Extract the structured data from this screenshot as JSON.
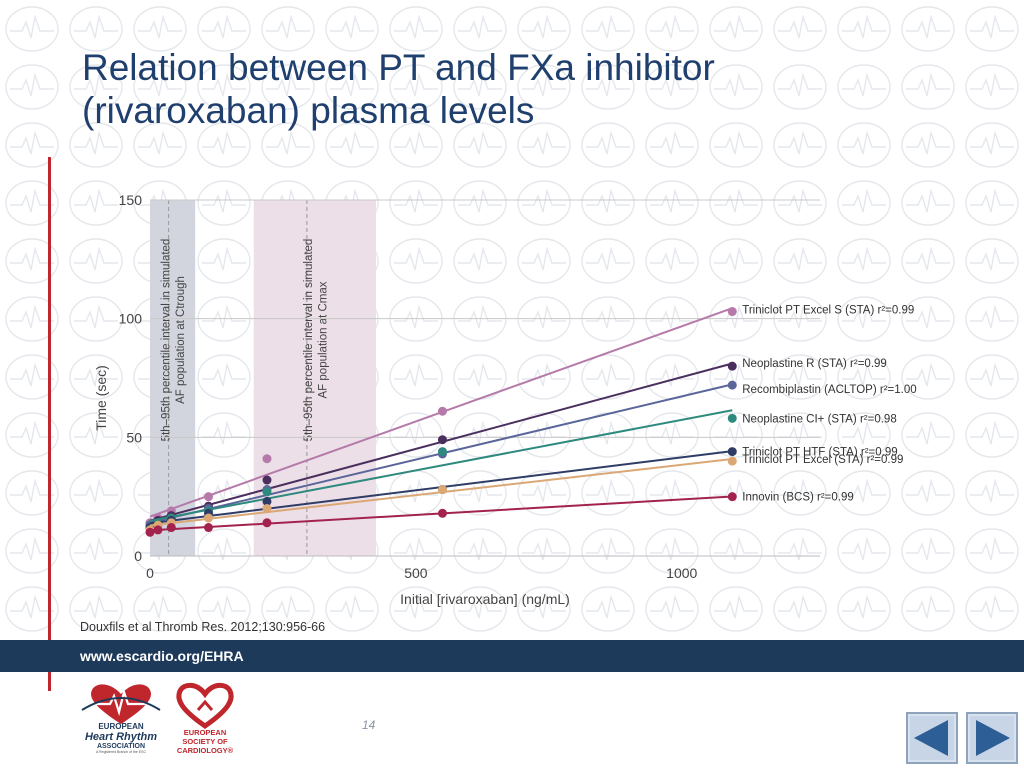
{
  "slide": {
    "title_line1": "Relation between PT and FXa inhibitor",
    "title_line2": "(rivaroxaban) plasma levels",
    "citation": "Douxfils et al Thromb Res. 2012;130:956-66",
    "footer_url": "www.escardio.org/EHRA",
    "page_number": "14",
    "colors": {
      "title": "#1f3f6e",
      "footer_bar": "#1e3a5b",
      "accent_red": "#c0272d"
    }
  },
  "logos": {
    "ehra": {
      "line1": "EUROPEAN",
      "line2": "Heart Rhythm",
      "line3": "ASSOCIATION",
      "line4": "A Registered Branch of the ESC"
    },
    "esc": {
      "line1": "EUROPEAN",
      "line2": "SOCIETY OF",
      "line3": "CARDIOLOGY®"
    }
  },
  "nav": {
    "prev_icon": "triangle-left-icon",
    "next_icon": "triangle-right-icon"
  },
  "chart_data": {
    "type": "scatter",
    "xlabel": "Initial [rivaroxaban] (ng/mL)",
    "ylabel": "Time (sec)",
    "xlim": [
      0,
      1260
    ],
    "ylim": [
      0,
      150
    ],
    "xticks": [
      0,
      500,
      1000
    ],
    "yticks": [
      0,
      50,
      100,
      150
    ],
    "grid": "horizontal",
    "bands": [
      {
        "x0": 0,
        "x1": 85,
        "marker": 35,
        "color": "#d3d5de",
        "label1": "5th–95th percentile interval in simulated",
        "label2": "AF population at Ctrough"
      },
      {
        "x0": 195,
        "x1": 425,
        "marker": 295,
        "color": "#ecdfe7",
        "label1": "5th–95th percentile interval in simulated",
        "label2": "AF population at Cmax"
      }
    ],
    "series": [
      {
        "label": "Triniclot PT Excel S (STA) r²=0.99",
        "color": "#b57aaa",
        "x": [
          0,
          15,
          40,
          110,
          220,
          550,
          1095
        ],
        "y": [
          14,
          16,
          19,
          25,
          41,
          61,
          103
        ]
      },
      {
        "label": "Neoplastine R (STA)  r²=0.99",
        "color": "#4a2f5e",
        "x": [
          0,
          15,
          40,
          110,
          220,
          550,
          1095
        ],
        "y": [
          13,
          15,
          17,
          21,
          32,
          49,
          80
        ]
      },
      {
        "label": "Recombiplastin (ACLTOP) r²=1.00",
        "color": "#5a659a",
        "x": [
          0,
          15,
          40,
          110,
          220,
          550,
          1095
        ],
        "y": [
          13,
          14,
          16,
          20,
          28,
          43,
          72
        ]
      },
      {
        "label": "Neoplastine  CI+ (STA) r²=0.98",
        "color": "#2e8a7e",
        "x": [
          0,
          15,
          40,
          110,
          220,
          550,
          1095
        ],
        "y": [
          12,
          14,
          16,
          19,
          27,
          44,
          58
        ]
      },
      {
        "label": "Triniclot PT HTF (STA) r²=0.99",
        "color": "#2f3d66",
        "x": [
          0,
          15,
          40,
          110,
          220,
          550,
          1095
        ],
        "y": [
          12,
          13,
          15,
          18,
          23,
          28,
          44
        ]
      },
      {
        "label": "Triniclot PT Excel (STA) r²=0.99",
        "color": "#dba775",
        "x": [
          0,
          15,
          40,
          110,
          220,
          550,
          1095
        ],
        "y": [
          11,
          13,
          14,
          16,
          20,
          28,
          40
        ]
      },
      {
        "label": "Innovin (BCS) r²=0.99",
        "color": "#a3224e",
        "x": [
          0,
          15,
          40,
          110,
          220,
          550,
          1095
        ],
        "y": [
          10,
          11,
          12,
          12,
          14,
          18,
          25
        ]
      }
    ]
  }
}
